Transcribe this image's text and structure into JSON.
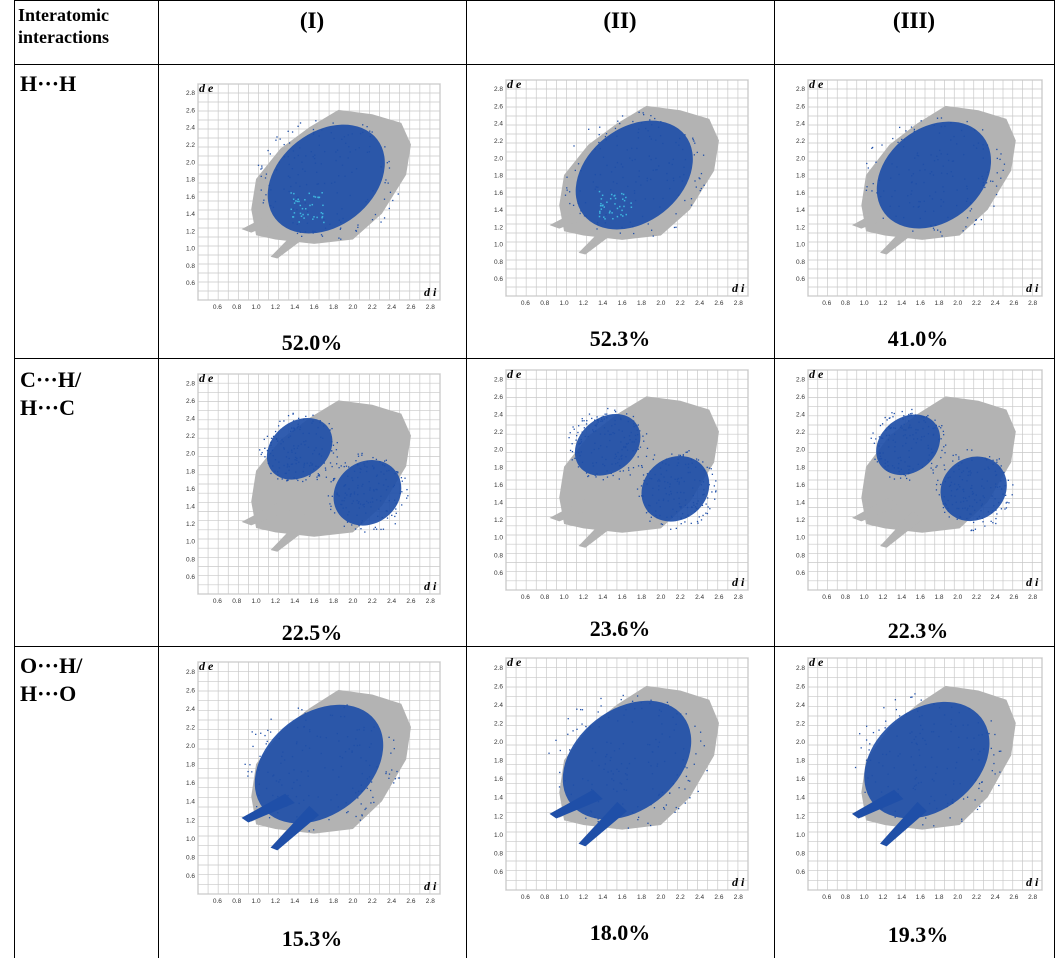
{
  "table": {
    "corner_label": [
      "Interatomic",
      "interactions"
    ],
    "columns": [
      "(I)",
      "(II)",
      "(III)"
    ],
    "rows": [
      {
        "label": [
          "H···H"
        ],
        "percentages": [
          "52.0%",
          "52.3%",
          "41.0%"
        ]
      },
      {
        "label": [
          "C···H/",
          "H···C"
        ],
        "percentages": [
          "22.5%",
          "23.6%",
          "22.3%"
        ]
      },
      {
        "label": [
          "O···H/",
          "H···O"
        ],
        "percentages": [
          "15.3%",
          "18.0%",
          "19.3%"
        ]
      }
    ]
  },
  "plot": {
    "y_axis_label": "d e",
    "x_axis_label": "d i",
    "y_ticks": [
      "2.8",
      "2.6",
      "2.4",
      "2.2",
      "2.0",
      "1.8",
      "1.6",
      "1.4",
      "1.2",
      "1.0",
      "0.8",
      "0.6"
    ],
    "x_ticks": [
      "0.6",
      "0.8",
      "1.0",
      "1.2",
      "1.4",
      "1.6",
      "1.8",
      "2.0",
      "2.2",
      "2.4",
      "2.6",
      "2.8"
    ],
    "colors": {
      "full": "#b3b3b3",
      "highlight": "#1f4fa8",
      "core": "#3fb7e0",
      "grid": "#c8c8c8"
    }
  }
}
